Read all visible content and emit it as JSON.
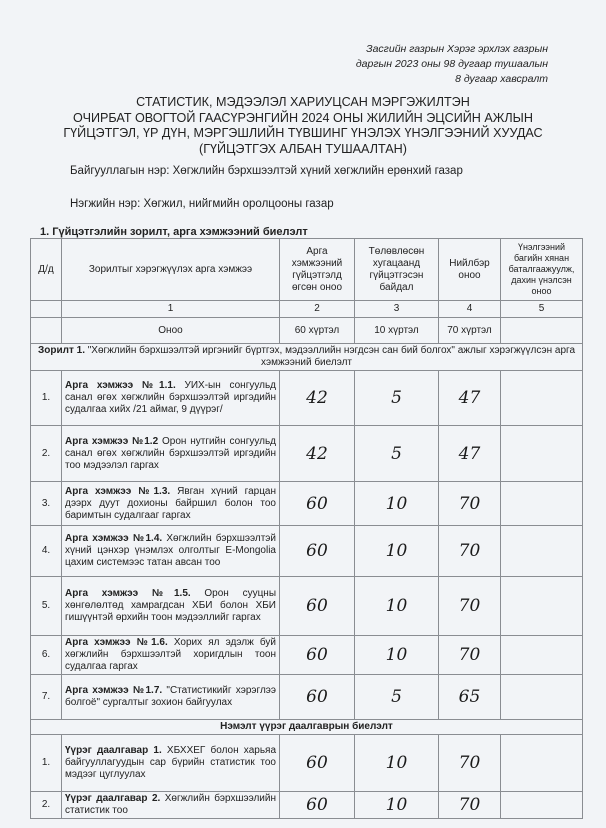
{
  "reference": [
    "Засгийн газрын Хэрэг эрхлэх газрын",
    "даргын 2023 оны 98 дугаар тушаалын",
    "8 дугаар хавсралт"
  ],
  "title": [
    "СТАТИСТИК, МЭДЭЭЛЭЛ ХАРИУЦСАН МЭРГЭЖИЛТЭН",
    "ОЧИРБАТ ОВОГТОЙ ГААСҮРЭНГИЙН 2024 ОНЫ ЖИЛИЙН ЭЦСИЙН АЖЛЫН",
    "ГҮЙЦЭТГЭЛ, ҮР ДҮН, МЭРГЭШЛИЙН ТҮВШИНГ ҮНЭЛЭХ ҮНЭЛГЭЭНИЙ ХУУДАС",
    "(ГҮЙЦЭТГЭХ АЛБАН ТУШААЛТАН)"
  ],
  "organization": "Байгууллагын нэр: Хөгжлийн бэрхшээлтэй хүний хөгжлийн ерөнхий газар",
  "unit": "Нэгжийн нэр: Хөгжил, нийгмийн оролцооны газар",
  "section_title": "1.   Гүйцэтгэлийн зорилт, арга хэмжээний биелэлт",
  "table": {
    "headers": [
      "Д/д",
      "Зорилтыг хэрэгжүүлэх арга хэмжээ",
      "Арга хэмжээний гүйцэтгэлд өгсөн оноо",
      "Төлөвлөсөн хугацаанд гүйцэтгэсэн байдал",
      "Нийлбэр оноо",
      "Үнэлгээний багийн хянан баталгаажуулж, дахин үнэлсэн оноо"
    ],
    "col_numbers": [
      "1",
      "2",
      "3",
      "4",
      "5"
    ],
    "score_row": {
      "label": "Оноо",
      "c2": "60 хүртэл",
      "c3": "10 хүртэл",
      "c4": "70 хүртэл"
    },
    "goal1": {
      "bold": "Зорилт 1.",
      "text": " \"Хөгжлийн бэрхшээлтэй иргэнийг бүртгэх, мэдээллийн нэгдсэн сан бий болгох\" ажлыг хэрэгжүүлсэн арга хэмжээний биелэлт"
    },
    "rows": [
      {
        "n": "1.",
        "bold": "Арга хэмжээ №1.1.",
        "text": " УИХ-ын сонгуульд санал өгөх хөгжлийн бэрхшээлтэй иргэдийн судалгаа хийх /21 аймаг, 9 дүүрэг/",
        "c2": "42",
        "c3": "5",
        "c4": "47",
        "c5": ""
      },
      {
        "n": "2.",
        "bold": "Арга хэмжээ №1.2",
        "text": " Орон нутгийн сонгуульд санал өгөх хөгжлийн бэрхшээлтэй иргэдийн тоо мэдээлэл гаргах",
        "c2": "42",
        "c3": "5",
        "c4": "47",
        "c5": ""
      },
      {
        "n": "3.",
        "bold": "Арга хэмжээ №1.3.",
        "text": " Явган хүний гарцан дээрх дуут дохионы байршил болон тоо баримтын судалгааг гаргах",
        "c2": "60",
        "c3": "10",
        "c4": "70",
        "c5": ""
      },
      {
        "n": "4.",
        "bold": "Арга хэмжээ №1.4.",
        "text": " Хөгжлийн бэрхшээлтэй хүний цэнхэр үнэмлэх олголтыг E-Mongolia цахим системээс татан авсан тоо",
        "c2": "60",
        "c3": "10",
        "c4": "70",
        "c5": ""
      },
      {
        "n": "5.",
        "bold": "Арга хэмжээ №1.5.",
        "text": " Орон сууцны хөнгөлөлтөд хамрагдсан ХБИ болон ХБИ гишүүнтэй өрхийн тоон мэдээллийг гаргах",
        "c2": "60",
        "c3": "10",
        "c4": "70",
        "c5": ""
      },
      {
        "n": "6.",
        "bold": "Арга хэмжээ №1.6.",
        "text": " Хорих ял эдэлж буй хөгжлийн бэрхшээлтэй хоригдлын тоон судалгаа гаргах",
        "c2": "60",
        "c3": "10",
        "c4": "70",
        "c5": ""
      },
      {
        "n": "7.",
        "bold": "Арга хэмжээ №1.7.",
        "text": " \"Статистикийг хэрэглээ болгоё\" сургалтыг зохион байгуулах",
        "c2": "60",
        "c3": "5",
        "c4": "65",
        "c5": ""
      }
    ],
    "extra_title": "Нэмэлт үүрэг даалгаврын биелэлт",
    "extra_rows": [
      {
        "n": "1.",
        "bold": "Үүрэг даалгавар 1.",
        "text": " ХБХХЕГ болон харьяа байгууллагуудын сар бүрийн статистик тоо мэдээг цуглуулах",
        "c2": "60",
        "c3": "10",
        "c4": "70",
        "c5": ""
      },
      {
        "n": "2.",
        "bold": "Үүрэг даалгавар 2.",
        "text": " Хөгжлийн бэрхшээлийн статистик тоо",
        "c2": "60",
        "c3": "10",
        "c4": "70",
        "c5": ""
      }
    ]
  }
}
